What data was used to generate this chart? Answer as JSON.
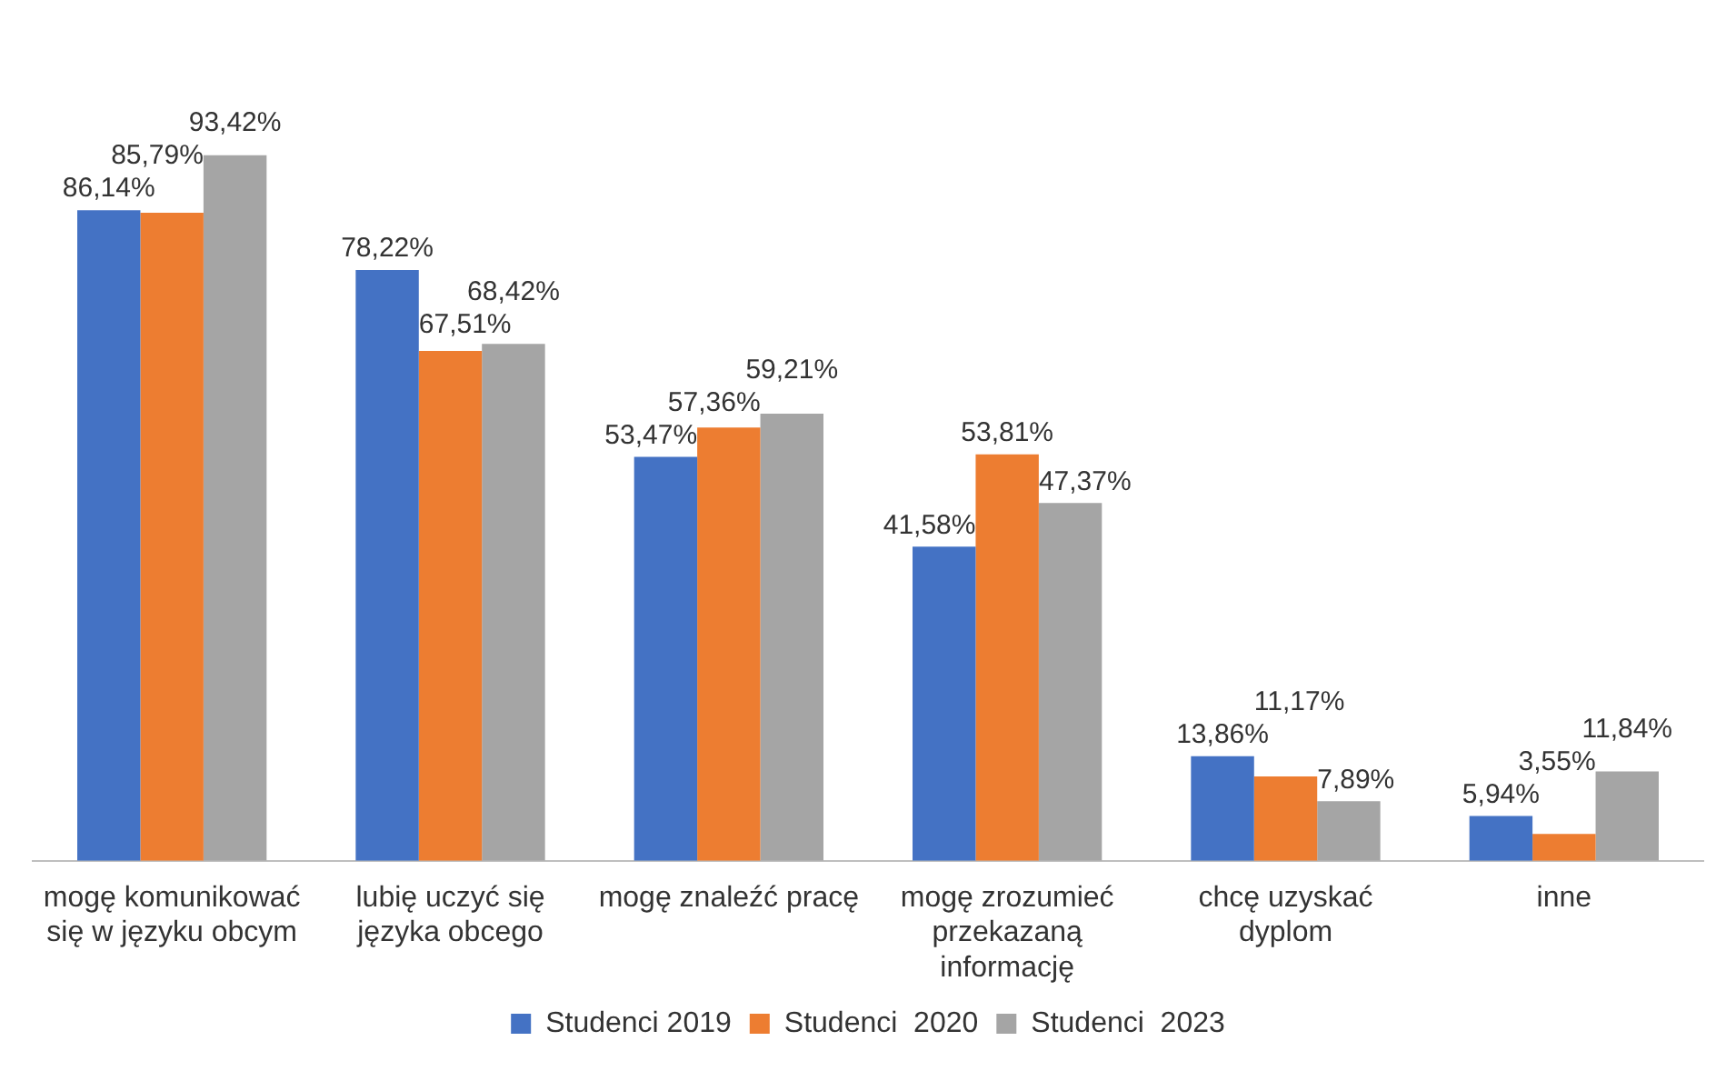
{
  "chart_data": {
    "type": "bar",
    "categories": [
      "mogę komunikować się w języku obcym",
      "lubię uczyć się języka obcego",
      "mogę znaleźć pracę",
      "mogę zrozumieć przekazaną informację",
      "chcę uzyskać dyplom",
      "inne"
    ],
    "series": [
      {
        "name": "Studenci 2019",
        "color": "#4472c4",
        "values": [
          86.14,
          78.22,
          53.47,
          41.58,
          13.86,
          5.94
        ],
        "value_labels": [
          "86,14%",
          "78,22%",
          "53,47%",
          "41,58%",
          "13,86%",
          "5,94%"
        ]
      },
      {
        "name": "Studenci  2020",
        "color": "#ed7d31",
        "values": [
          85.79,
          67.51,
          57.36,
          53.81,
          11.17,
          3.55
        ],
        "value_labels": [
          "85,79%",
          "67,51%",
          "57,36%",
          "53,81%",
          "11,17%",
          "3,55%"
        ]
      },
      {
        "name": "Studenci  2023",
        "color": "#a5a5a5",
        "values": [
          93.42,
          68.42,
          59.21,
          47.37,
          7.89,
          11.84
        ],
        "value_labels": [
          "93,42%",
          "68,42%",
          "59,21%",
          "47,37%",
          "7,89%",
          "11,84%"
        ]
      }
    ],
    "legend": "bottom",
    "grid": false
  }
}
